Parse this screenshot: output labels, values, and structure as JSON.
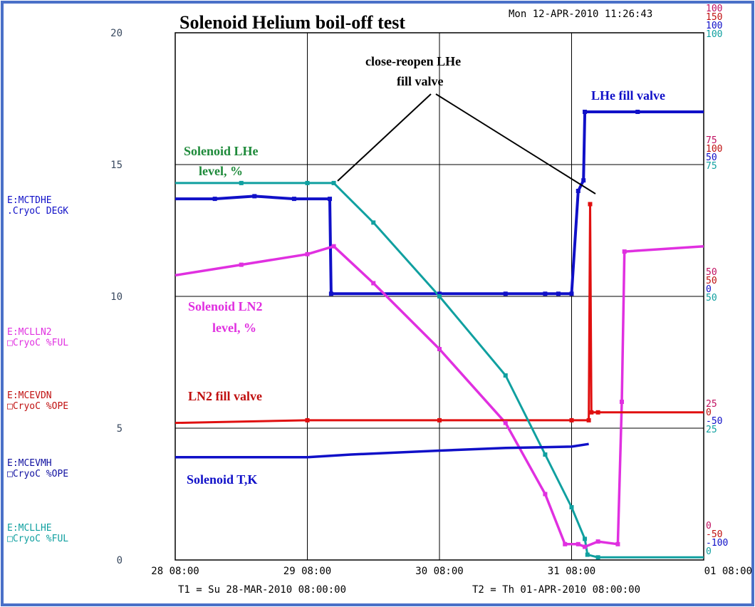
{
  "title": "Solenoid Helium boil-off test",
  "timestamp": "Mon 12-APR-2010 11:26:43",
  "colors": {
    "mctdhe": "#1010c8",
    "mclln2": "#e030e0",
    "mcevdn": "#e01010",
    "mcevmh": "#1010c8",
    "mcllhe": "#10a0a0",
    "annotation_green": "#1e8a3a",
    "axis_left": "#3a4a60"
  },
  "left_axis": {
    "ticks": [
      "0",
      "5",
      "10",
      "15",
      "20"
    ]
  },
  "x_axis": {
    "ticks": [
      "28 08:00",
      "29 08:00",
      "30 08:00",
      "31 08:00",
      "01 08:00"
    ],
    "t1": "T1 = Su 28-MAR-2010 08:00:00",
    "t2": "T2 = Th 01-APR-2010 08:00:00"
  },
  "channels": [
    {
      "name": "E:MCTDHE",
      "desc": ".CryoC  DEGK"
    },
    {
      "name": "E:MCLLN2",
      "desc": "□CryoC  %FUL"
    },
    {
      "name": "E:MCEVDN",
      "desc": "□CryoC  %OPE"
    },
    {
      "name": "E:MCEVMH",
      "desc": "□CryoC  %OPE"
    },
    {
      "name": "E:MCLLHE",
      "desc": "□CryoC  %FUL"
    }
  ],
  "right_axis_labels": [
    {
      "text": "100",
      "color": "#c01060",
      "row": 0
    },
    {
      "text": "150",
      "color": "#c01010",
      "row": 1
    },
    {
      "text": "100",
      "color": "#1010c8",
      "row": 2
    },
    {
      "text": "100",
      "color": "#10a0a0",
      "row": 3
    },
    {
      "text": "75",
      "color": "#c01060",
      "row": 10
    },
    {
      "text": "100",
      "color": "#c01010",
      "row": 11
    },
    {
      "text": "50",
      "color": "#1010c8",
      "row": 12
    },
    {
      "text": "75",
      "color": "#10a0a0",
      "row": 13
    },
    {
      "text": "50",
      "color": "#c01060",
      "row": 20
    },
    {
      "text": "50",
      "color": "#c01010",
      "row": 21
    },
    {
      "text": "0",
      "color": "#1010c8",
      "row": 22
    },
    {
      "text": "50",
      "color": "#10a0a0",
      "row": 23
    },
    {
      "text": "25",
      "color": "#c01060",
      "row": 30
    },
    {
      "text": "0",
      "color": "#c01010",
      "row": 31
    },
    {
      "text": "-50",
      "color": "#1010c8",
      "row": 32
    },
    {
      "text": "25",
      "color": "#10a0a0",
      "row": 33
    },
    {
      "text": "0",
      "color": "#c01060",
      "row": 40
    },
    {
      "text": "-50",
      "color": "#c01010",
      "row": 41
    },
    {
      "text": "-100",
      "color": "#1010c8",
      "row": 42
    },
    {
      "text": "0",
      "color": "#10a0a0",
      "row": 43
    }
  ],
  "annotations": {
    "close_reopen_1": "close-reopen LHe",
    "close_reopen_2": "fill valve",
    "lhe_fill_valve": "LHe fill valve",
    "lhe_level_1": "Solenoid LHe",
    "lhe_level_2": "level, %",
    "ln2_level_1": "Solenoid LN2",
    "ln2_level_2": "level, %",
    "ln2_fill_valve": "LN2 fill valve",
    "solenoid_tk": "Solenoid T,K"
  },
  "chart_data": {
    "type": "line",
    "title": "Solenoid Helium boil-off test",
    "xlabel": "",
    "ylabel": "",
    "x_unit": "days since 28-MAR-2010 08:00",
    "xlim": [
      0,
      4
    ],
    "ylim": [
      0,
      20
    ],
    "series": [
      {
        "name": "Solenoid T,K",
        "channel": "E:MCTDHE",
        "unit": "DEGK",
        "color": "#1010c8",
        "x": [
          0,
          0.3,
          0.6,
          0.9,
          1.17,
          1.18,
          2.0,
          2.5,
          2.8,
          2.9,
          3.0,
          3.05,
          3.09,
          3.1,
          3.5,
          4.0
        ],
        "y": [
          13.7,
          13.7,
          13.8,
          13.7,
          13.7,
          10.1,
          10.1,
          10.1,
          10.1,
          10.1,
          10.1,
          14.0,
          14.4,
          17.0,
          17.0,
          17.0
        ]
      },
      {
        "name": "Solenoid LN2 level, %",
        "channel": "E:MCLLN2",
        "unit": "%FUL",
        "color": "#e030e0",
        "x": [
          0,
          0.5,
          1.0,
          1.2,
          1.5,
          2.0,
          2.5,
          2.8,
          2.95,
          3.05,
          3.1,
          3.2,
          3.35,
          3.38,
          3.4,
          4.0
        ],
        "y": [
          10.8,
          11.2,
          11.6,
          11.9,
          10.5,
          8.0,
          5.2,
          2.5,
          0.6,
          0.6,
          0.5,
          0.7,
          0.6,
          6.0,
          11.7,
          11.9
        ]
      },
      {
        "name": "LN2 fill valve",
        "channel": "E:MCEVDN",
        "unit": "%OPE",
        "color": "#e01010",
        "x": [
          0,
          1.0,
          2.0,
          3.0,
          3.13,
          3.14,
          3.15,
          3.2,
          4.0
        ],
        "y": [
          5.2,
          5.3,
          5.3,
          5.3,
          5.3,
          13.5,
          5.6,
          5.6,
          5.6
        ]
      },
      {
        "name": "Solenoid LHe level, %",
        "channel": "E:MCLLHE",
        "unit": "%FUL",
        "color": "#10a0a0",
        "x": [
          0,
          0.5,
          1.0,
          1.2,
          1.5,
          2.0,
          2.5,
          2.8,
          3.0,
          3.1,
          3.12,
          3.2,
          4.0
        ],
        "y": [
          14.3,
          14.3,
          14.3,
          14.3,
          12.8,
          10.0,
          7.0,
          4.0,
          2.0,
          0.8,
          0.2,
          0.1,
          0.1
        ]
      },
      {
        "name": "",
        "channel": "E:MCEVMH",
        "unit": "%OPE",
        "color": "#1010c8",
        "x": [
          0,
          0.5,
          1.0,
          1.33,
          2.0,
          2.5,
          3.0,
          3.13
        ],
        "y": [
          3.9,
          3.9,
          3.9,
          4.0,
          4.15,
          4.25,
          4.3,
          4.4
        ]
      }
    ]
  }
}
